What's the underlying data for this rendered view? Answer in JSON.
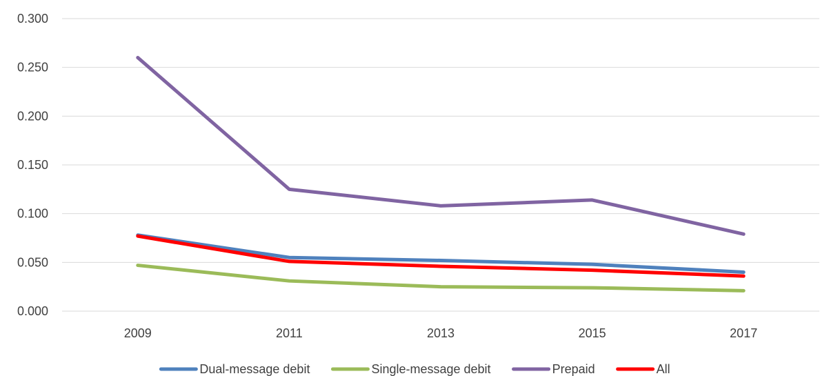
{
  "chart_data": {
    "type": "line",
    "title": "",
    "xlabel": "",
    "ylabel": "",
    "x": [
      "2009",
      "2011",
      "2013",
      "2015",
      "2017"
    ],
    "ylim": [
      0,
      0.3
    ],
    "yticks": [
      "0.000",
      "0.050",
      "0.100",
      "0.150",
      "0.200",
      "0.250",
      "0.300"
    ],
    "grid": true,
    "legend_position": "bottom",
    "series": [
      {
        "name": "Dual-message debit",
        "color": "#4f81bd",
        "values": [
          0.078,
          0.055,
          0.052,
          0.048,
          0.04
        ]
      },
      {
        "name": "Single-message debit",
        "color": "#9bbb59",
        "values": [
          0.047,
          0.031,
          0.025,
          0.024,
          0.021
        ]
      },
      {
        "name": "Prepaid",
        "color": "#8064a2",
        "values": [
          0.26,
          0.125,
          0.108,
          0.114,
          0.079
        ]
      },
      {
        "name": "All",
        "color": "#ff0000",
        "values": [
          0.077,
          0.051,
          0.046,
          0.042,
          0.036
        ]
      }
    ]
  }
}
